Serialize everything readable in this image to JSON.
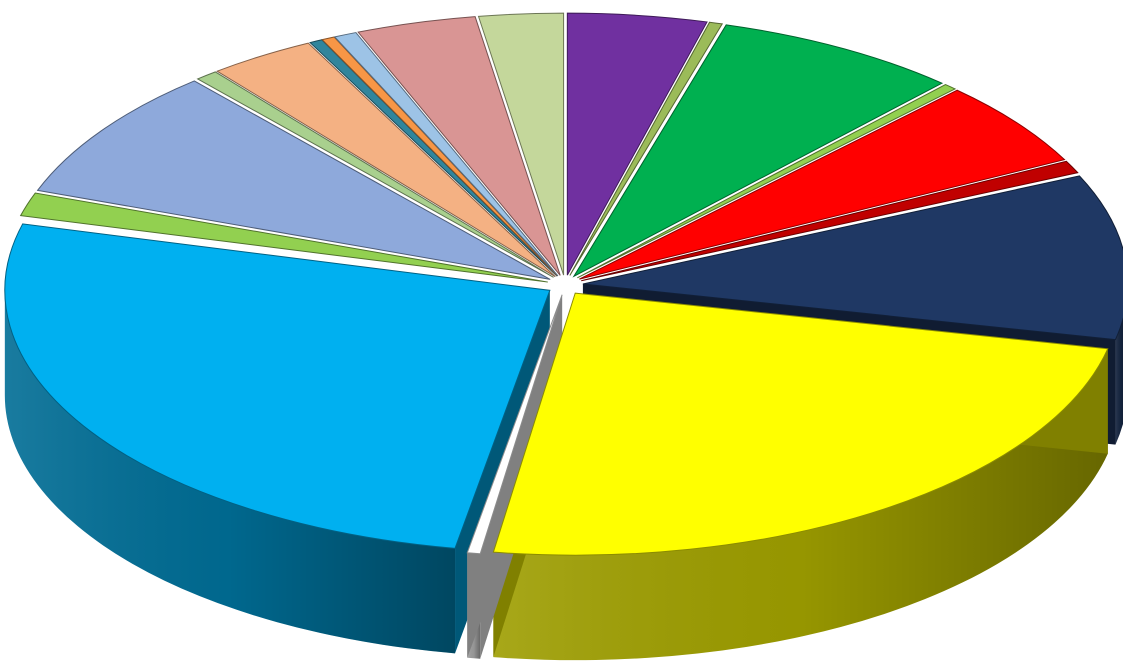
{
  "chart_data": {
    "type": "pie",
    "title": "",
    "style": "3d-exploded",
    "start_angle_deg": -90,
    "direction": "clockwise",
    "slices": [
      {
        "value": 4.3,
        "color": "#7030A0"
      },
      {
        "value": 0.4,
        "color": "#9BBB59"
      },
      {
        "value": 7.6,
        "color": "#00B050"
      },
      {
        "value": 0.4,
        "color": "#92D050"
      },
      {
        "value": 5.5,
        "color": "#FF0000"
      },
      {
        "value": 0.8,
        "color": "#C00000"
      },
      {
        "value": 10.6,
        "color": "#1F3864"
      },
      {
        "value": 25.0,
        "color": "#FFFF00"
      },
      {
        "value": 0.4,
        "color": "#FFFFFF"
      },
      {
        "value": 27.4,
        "color": "#00B0F0"
      },
      {
        "value": 1.5,
        "color": "#92D050"
      },
      {
        "value": 8.5,
        "color": "#8EA9DB"
      },
      {
        "value": 0.7,
        "color": "#A9D08E"
      },
      {
        "value": 3.3,
        "color": "#F4B183"
      },
      {
        "value": 0.4,
        "color": "#31859C"
      },
      {
        "value": 0.4,
        "color": "#F79646"
      },
      {
        "value": 0.7,
        "color": "#9DC3E6"
      },
      {
        "value": 3.7,
        "color": "#D99594"
      },
      {
        "value": 2.6,
        "color": "#C4D79B"
      }
    ]
  }
}
